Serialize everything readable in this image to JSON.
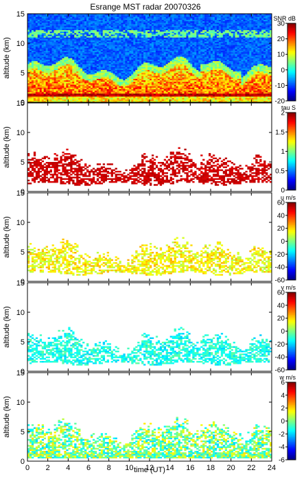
{
  "title": "Esrange MST radar 20070326",
  "xlabel": "time (UT)",
  "x_ticks": [
    "0",
    "2",
    "4",
    "6",
    "8",
    "10",
    "12",
    "14",
    "16",
    "18",
    "20",
    "22",
    "24"
  ],
  "y_ticks": [
    "0",
    "5",
    "10",
    "15"
  ],
  "ylabel": "altitude (km)",
  "colors": {
    "frame": "#000000",
    "background": "#ffffff",
    "jet_scale": [
      "#00008f",
      "#0000ff",
      "#0080ff",
      "#00ffff",
      "#80ff80",
      "#ffff00",
      "#ff8000",
      "#ff0000",
      "#800000"
    ]
  },
  "chart_data": [
    {
      "type": "heatmap",
      "panel": "snr",
      "xlabel": "",
      "ylabel": "altitude (km)",
      "xlim": [
        0,
        24
      ],
      "ylim": [
        0,
        15
      ],
      "colorbar": {
        "label": "SNR dB",
        "range": [
          -20,
          30
        ],
        "ticks": [
          "30",
          "20",
          "10",
          "0",
          "-10",
          "-20"
        ]
      },
      "notes_values": {
        "boundary_layer_snr_db": 25,
        "background_snr_db": -10,
        "enhanced_layer_altitude_km": [
          2,
          6
        ]
      }
    },
    {
      "type": "heatmap",
      "panel": "tau",
      "xlabel": "",
      "ylabel": "altitude (km)",
      "xlim": [
        0,
        24
      ],
      "ylim": [
        0,
        15
      ],
      "colorbar": {
        "label": "tau S",
        "range": [
          0,
          2
        ],
        "ticks": [
          "2",
          "1.5",
          "1",
          "0.5",
          "0"
        ]
      },
      "notes_values": {
        "typical_tau_s": 1.9,
        "echo_altitude_km": [
          1.5,
          6.5
        ]
      }
    },
    {
      "type": "heatmap",
      "panel": "u",
      "xlabel": "",
      "ylabel": "altitude (km)",
      "xlim": [
        0,
        24
      ],
      "ylim": [
        0,
        15
      ],
      "colorbar": {
        "label": "u m/s",
        "range": [
          -60,
          60
        ],
        "ticks": [
          "60",
          "40",
          "20",
          "0",
          "-20",
          "-40",
          "-60"
        ]
      },
      "notes_values": {
        "typical_u_ms": 15,
        "echo_altitude_km": [
          1.5,
          6.5
        ]
      }
    },
    {
      "type": "heatmap",
      "panel": "v",
      "xlabel": "",
      "ylabel": "altitude (km)",
      "xlim": [
        0,
        24
      ],
      "ylim": [
        0,
        15
      ],
      "colorbar": {
        "label": "v m/s",
        "range": [
          -60,
          60
        ],
        "ticks": [
          "60",
          "40",
          "20",
          "0",
          "-20",
          "-40",
          "-60"
        ]
      },
      "notes_values": {
        "typical_v_ms": -12,
        "echo_altitude_km": [
          1.5,
          6.5
        ]
      }
    },
    {
      "type": "heatmap",
      "panel": "w",
      "xlabel": "time (UT)",
      "ylabel": "altitude (km)",
      "xlim": [
        0,
        24
      ],
      "ylim": [
        0,
        15
      ],
      "colorbar": {
        "label": "w m/s",
        "range": [
          -6,
          6
        ],
        "ticks": [
          "6",
          "4",
          "2",
          "0",
          "-2",
          "-4",
          "-6"
        ]
      },
      "notes_values": {
        "typical_w_ms": 0,
        "echo_altitude_km": [
          0.5,
          7.5
        ]
      }
    }
  ]
}
